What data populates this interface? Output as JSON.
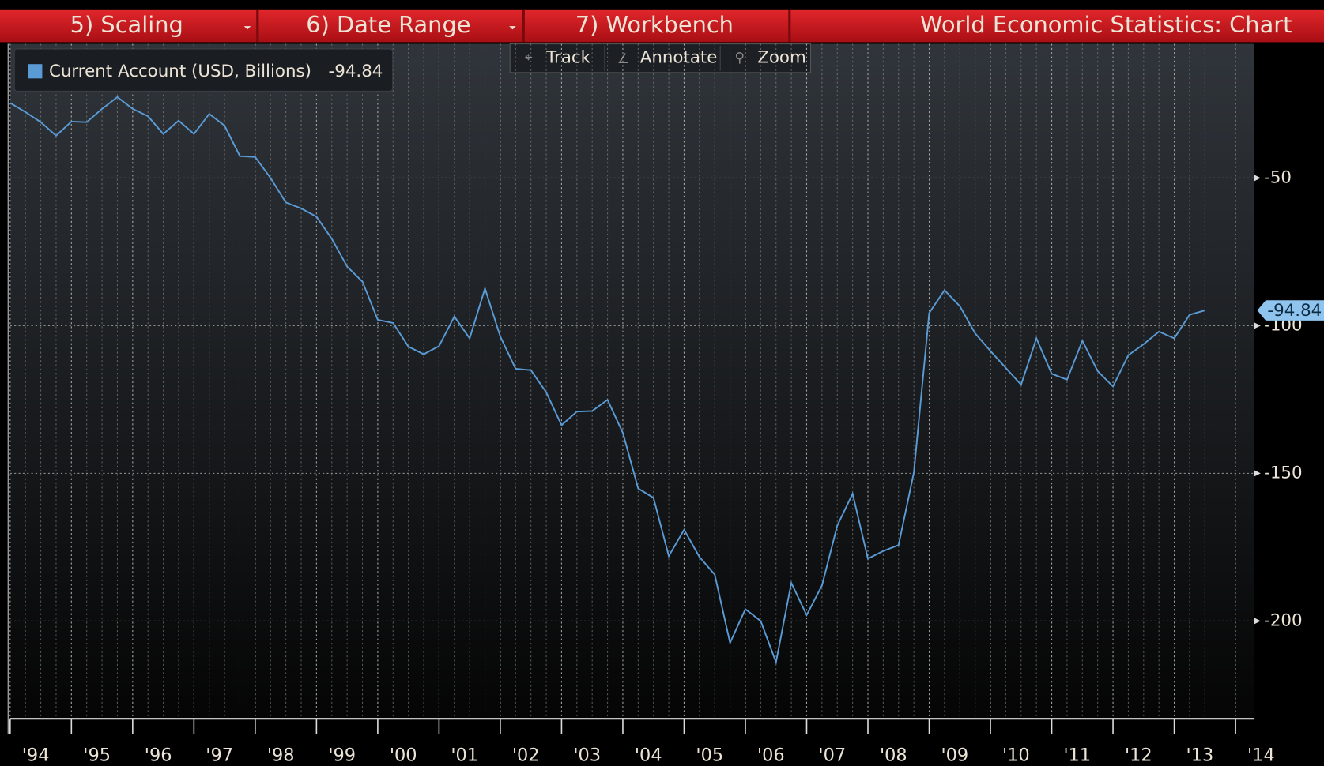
{
  "toolbar": {
    "menu": [
      "5) Scaling",
      "6) Date Range",
      "7) Workbench"
    ],
    "title": "World Economic Statistics: Chart",
    "tools": [
      "Track",
      "Annotate",
      "Zoom"
    ]
  },
  "chart_data": {
    "type": "line",
    "x": [
      1994,
      1994.25,
      1994.5,
      1994.75,
      1995,
      1995.25,
      1995.5,
      1995.75,
      1996,
      1996.25,
      1996.5,
      1996.75,
      1997,
      1997.25,
      1997.5,
      1997.75,
      1998,
      1998.25,
      1998.5,
      1998.75,
      1999,
      1999.25,
      1999.5,
      1999.75,
      2000,
      2000.25,
      2000.5,
      2000.75,
      2001,
      2001.25,
      2001.5,
      2001.75,
      2002,
      2002.25,
      2002.5,
      2002.75,
      2003,
      2003.25,
      2003.5,
      2003.75,
      2004,
      2004.25,
      2004.5,
      2004.75,
      2005,
      2005.25,
      2005.5,
      2005.75,
      2006,
      2006.25,
      2006.5,
      2006.75,
      2007,
      2007.25,
      2007.5,
      2007.75,
      2008,
      2008.25,
      2008.5,
      2008.75,
      2009,
      2009.25,
      2009.5,
      2009.75,
      2010,
      2010.25,
      2010.5,
      2010.75,
      2011,
      2011.25,
      2011.5,
      2011.75,
      2012,
      2012.25,
      2012.5,
      2012.75,
      2013,
      2013.25,
      2013.5
    ],
    "series": [
      {
        "name": "Current Account (USD, Billions)",
        "color": "#5b9bd5",
        "values": [
          -24.6,
          -27.7,
          -31.1,
          -35.7,
          -30.9,
          -31.1,
          -26.6,
          -22.6,
          -26.6,
          -29.1,
          -35.1,
          -30.6,
          -35.1,
          -28.3,
          -32.3,
          -42.6,
          -42.9,
          -50,
          -58.3,
          -60.3,
          -63.1,
          -70.6,
          -80,
          -85.1,
          -98,
          -99.1,
          -107.1,
          -109.7,
          -106.9,
          -96.9,
          -104.3,
          -87.4,
          -103.7,
          -114.6,
          -115.1,
          -122.6,
          -133.7,
          -129.1,
          -128.9,
          -125.1,
          -136.3,
          -155.1,
          -158.3,
          -178,
          -169.1,
          -178.3,
          -184.3,
          -207.4,
          -196,
          -200,
          -214,
          -187.1,
          -198,
          -188,
          -167.7,
          -156.9,
          -178.9,
          -176.3,
          -174.3,
          -149.7,
          -95.7,
          -88,
          -93.4,
          -102.6,
          -108.6,
          -114.3,
          -120,
          -104.3,
          -116.3,
          -118.3,
          -105.1,
          -115.4,
          -120.6,
          -110,
          -106.3,
          -102,
          -104.3,
          -96.3,
          -94.84
        ]
      }
    ],
    "xlim": [
      1994,
      2014.3
    ],
    "xticks": [
      {
        "value": 1994,
        "label": "'94"
      },
      {
        "value": 1995,
        "label": "'95"
      },
      {
        "value": 1996,
        "label": "'96"
      },
      {
        "value": 1997,
        "label": "'97"
      },
      {
        "value": 1998,
        "label": "'98"
      },
      {
        "value": 1999,
        "label": "'99"
      },
      {
        "value": 2000,
        "label": "'00"
      },
      {
        "value": 2001,
        "label": "'01"
      },
      {
        "value": 2002,
        "label": "'02"
      },
      {
        "value": 2003,
        "label": "'03"
      },
      {
        "value": 2004,
        "label": "'04"
      },
      {
        "value": 2005,
        "label": "'05"
      },
      {
        "value": 2006,
        "label": "'06"
      },
      {
        "value": 2007,
        "label": "'07"
      },
      {
        "value": 2008,
        "label": "'08"
      },
      {
        "value": 2009,
        "label": "'09"
      },
      {
        "value": 2010,
        "label": "'10"
      },
      {
        "value": 2011,
        "label": "'11"
      },
      {
        "value": 2012,
        "label": "'12"
      },
      {
        "value": 2013,
        "label": "'13"
      },
      {
        "value": 2014,
        "label": "'14"
      }
    ],
    "ylim": [
      -233.1,
      -4.6
    ],
    "yticks": [
      -50,
      -100,
      -150,
      -200
    ],
    "grid": true
  }
}
